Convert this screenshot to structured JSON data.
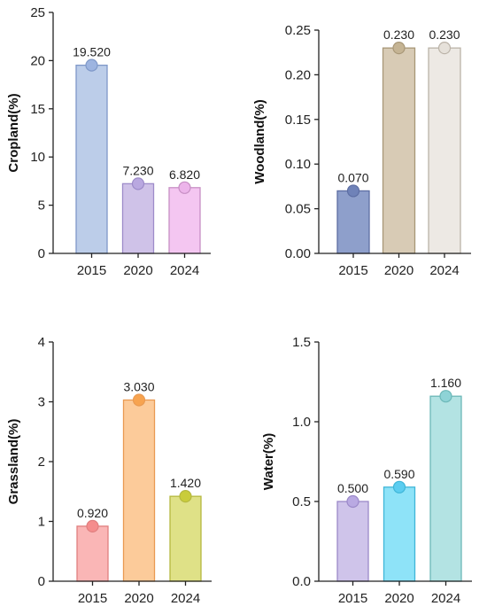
{
  "chart_data": [
    {
      "type": "bar",
      "ylabel": "Cropland(%)",
      "categories": [
        "2015",
        "2020",
        "2024"
      ],
      "values": [
        19.52,
        7.23,
        6.82
      ],
      "value_labels": [
        "19.520",
        "7.230",
        "6.820"
      ],
      "ylim": [
        0,
        25
      ],
      "yticks": [
        0,
        5,
        10,
        15,
        20,
        25
      ],
      "ytick_labels": [
        "0",
        "5",
        "10",
        "15",
        "20",
        "25"
      ],
      "bar_colors": [
        "#bccde9",
        "#cfc2e8",
        "#f4c6f1"
      ],
      "bar_edge_colors": [
        "#7f98c8",
        "#9d8bc9",
        "#c78fc4"
      ],
      "marker_colors": [
        "#9db4e0",
        "#b9a8e0",
        "#ecb4ea"
      ],
      "grid": false
    },
    {
      "type": "bar",
      "ylabel": "Woodland(%)",
      "categories": [
        "2015",
        "2020",
        "2024"
      ],
      "values": [
        0.07,
        0.23,
        0.23
      ],
      "value_labels": [
        "0.070",
        "0.230",
        "0.230"
      ],
      "ylim": [
        0,
        0.25
      ],
      "yticks": [
        0,
        0.05,
        0.1,
        0.15,
        0.2,
        0.25
      ],
      "ytick_labels": [
        "0.00",
        "0.05",
        "0.10",
        "0.15",
        "0.20",
        "0.25"
      ],
      "bar_colors": [
        "#8e9fcb",
        "#d8cbb5",
        "#ede9e4"
      ],
      "bar_edge_colors": [
        "#5d6ea3",
        "#a89777",
        "#bbb3a8"
      ],
      "marker_colors": [
        "#6f82b8",
        "#c5b494",
        "#e6e1da"
      ],
      "grid": false
    },
    {
      "type": "bar",
      "ylabel": "Grassland(%)",
      "categories": [
        "2015",
        "2020",
        "2024"
      ],
      "values": [
        0.92,
        3.03,
        1.42
      ],
      "value_labels": [
        "0.920",
        "3.030",
        "1.420"
      ],
      "ylim": [
        0,
        4
      ],
      "yticks": [
        0,
        1,
        2,
        3,
        4
      ],
      "ytick_labels": [
        "0",
        "1",
        "2",
        "3",
        "4"
      ],
      "bar_colors": [
        "#fab6b6",
        "#fccb9a",
        "#dfe187"
      ],
      "bar_edge_colors": [
        "#e07f7f",
        "#e99a52",
        "#b5b83f"
      ],
      "marker_colors": [
        "#f58d8d",
        "#f7a34f",
        "#c9cc3b"
      ],
      "grid": false
    },
    {
      "type": "bar",
      "ylabel": "Water(%)",
      "categories": [
        "2015",
        "2020",
        "2024"
      ],
      "values": [
        0.5,
        0.59,
        1.16
      ],
      "value_labels": [
        "0.500",
        "0.590",
        "1.160"
      ],
      "ylim": [
        0,
        1.5
      ],
      "yticks": [
        0,
        0.5,
        1.0,
        1.5
      ],
      "ytick_labels": [
        "0.0",
        "0.5",
        "1.0",
        "1.5"
      ],
      "bar_colors": [
        "#cfc4ea",
        "#8ee3f8",
        "#b3e3e3"
      ],
      "bar_edge_colors": [
        "#9b89c9",
        "#3fb6d8",
        "#6cb8b8"
      ],
      "marker_colors": [
        "#b9a9e2",
        "#5ccdf0",
        "#8ed3d6"
      ],
      "grid": false
    }
  ]
}
